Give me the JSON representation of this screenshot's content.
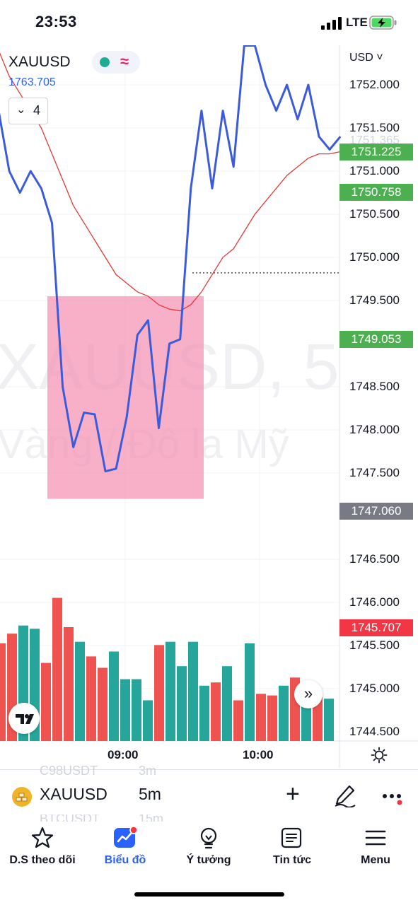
{
  "status_bar": {
    "time": "23:53",
    "network": "LTE"
  },
  "chart_header": {
    "symbol": "XAUUSD",
    "last_price": "1763.705",
    "indicators_count": "4",
    "currency": "USD"
  },
  "watermark": {
    "line1": "XAUUSD, 5",
    "line2": "Vàng / Đô la Mỹ"
  },
  "price_axis": {
    "ticks": [
      "1752.000",
      "1751.500",
      "1751.000",
      "1750.500",
      "1750.000",
      "1749.500",
      "1748.500",
      "1748.000",
      "1747.500",
      "1746.500",
      "1746.000",
      "1745.500",
      "1745.000",
      "1744.500"
    ],
    "tags": [
      {
        "label": "1751.225",
        "color": "#4caf50",
        "price": 1751.225
      },
      {
        "label": "1750.758",
        "color": "#4caf50",
        "price": 1750.758
      },
      {
        "label": "1749.053",
        "color": "#4caf50",
        "price": 1749.053
      },
      {
        "label": "1747.060",
        "color": "#787b86",
        "price": 1747.06
      },
      {
        "label": "1745.707",
        "color": "#f23645",
        "price": 1745.707
      }
    ],
    "ghost_label": "1751.365"
  },
  "time_axis": {
    "ticks": [
      "09:00",
      "10:00"
    ]
  },
  "chart_data": {
    "type": "line",
    "price_line": [
      1751.7,
      1751.0,
      1750.75,
      1751.0,
      1750.8,
      1750.4,
      1748.5,
      1747.8,
      1748.2,
      1748.18,
      1747.52,
      1747.55,
      1748.15,
      1749.1,
      1749.27,
      1748.02,
      1749.0,
      1749.05,
      1750.8,
      1751.7,
      1750.8,
      1751.7,
      1751.05,
      1752.5,
      1752.5,
      1752.0,
      1751.7,
      1752.0,
      1751.6,
      1752.0,
      1751.4,
      1751.25,
      1751.4
    ],
    "moving_average": [
      1752.4,
      1752.1,
      1751.9,
      1751.7,
      1751.5,
      1751.2,
      1750.9,
      1750.6,
      1750.4,
      1750.2,
      1750.0,
      1749.8,
      1749.7,
      1749.6,
      1749.55,
      1749.45,
      1749.4,
      1749.38,
      1749.45,
      1749.6,
      1749.8,
      1750.0,
      1750.1,
      1750.3,
      1750.5,
      1750.65,
      1750.8,
      1750.95,
      1751.05,
      1751.15,
      1751.2,
      1751.2,
      1751.225
    ],
    "volume": [
      {
        "v": 60,
        "c": "red"
      },
      {
        "v": 66,
        "c": "red"
      },
      {
        "v": 71,
        "c": "green"
      },
      {
        "v": 69,
        "c": "green"
      },
      {
        "v": 48,
        "c": "red"
      },
      {
        "v": 88,
        "c": "red"
      },
      {
        "v": 70,
        "c": "red"
      },
      {
        "v": 61,
        "c": "green"
      },
      {
        "v": 52,
        "c": "red"
      },
      {
        "v": 45,
        "c": "red"
      },
      {
        "v": 55,
        "c": "green"
      },
      {
        "v": 38,
        "c": "green"
      },
      {
        "v": 38,
        "c": "green"
      },
      {
        "v": 25,
        "c": "green"
      },
      {
        "v": 59,
        "c": "red"
      },
      {
        "v": 61,
        "c": "green"
      },
      {
        "v": 46,
        "c": "green"
      },
      {
        "v": 61,
        "c": "green"
      },
      {
        "v": 34,
        "c": "green"
      },
      {
        "v": 36,
        "c": "red"
      },
      {
        "v": 46,
        "c": "green"
      },
      {
        "v": 25,
        "c": "red"
      },
      {
        "v": 60,
        "c": "green"
      },
      {
        "v": 29,
        "c": "red"
      },
      {
        "v": 28,
        "c": "red"
      },
      {
        "v": 34,
        "c": "green"
      },
      {
        "v": 39,
        "c": "red"
      },
      {
        "v": 28,
        "c": "green"
      },
      {
        "v": 27,
        "c": "red"
      },
      {
        "v": 26,
        "c": "green"
      }
    ],
    "highlight_box": {
      "price_top": 1749.55,
      "price_bottom": 1747.2
    },
    "dotted_level": 1749.82,
    "colors": {
      "price_line": "#3b5bdb",
      "moving_average": "#e53935",
      "box": "#f48fb1",
      "volume_red": "#ef5350",
      "volume_green": "#26a69a"
    }
  },
  "symbol_bar": {
    "symbol": "XAUUSD",
    "interval": "5m",
    "ghost_rows": [
      {
        "symbol": "C98USDT",
        "interval": "3m"
      },
      {
        "symbol": "BTCUSDT",
        "interval": "15m"
      }
    ]
  },
  "bottom_nav": [
    {
      "label": "D.S theo dõi",
      "icon": "star-icon"
    },
    {
      "label": "Biểu đồ",
      "icon": "chart-icon"
    },
    {
      "label": "Ý tưởng",
      "icon": "lightbulb-icon"
    },
    {
      "label": "Tin tức",
      "icon": "news-icon"
    },
    {
      "label": "Menu",
      "icon": "menu-icon"
    }
  ]
}
